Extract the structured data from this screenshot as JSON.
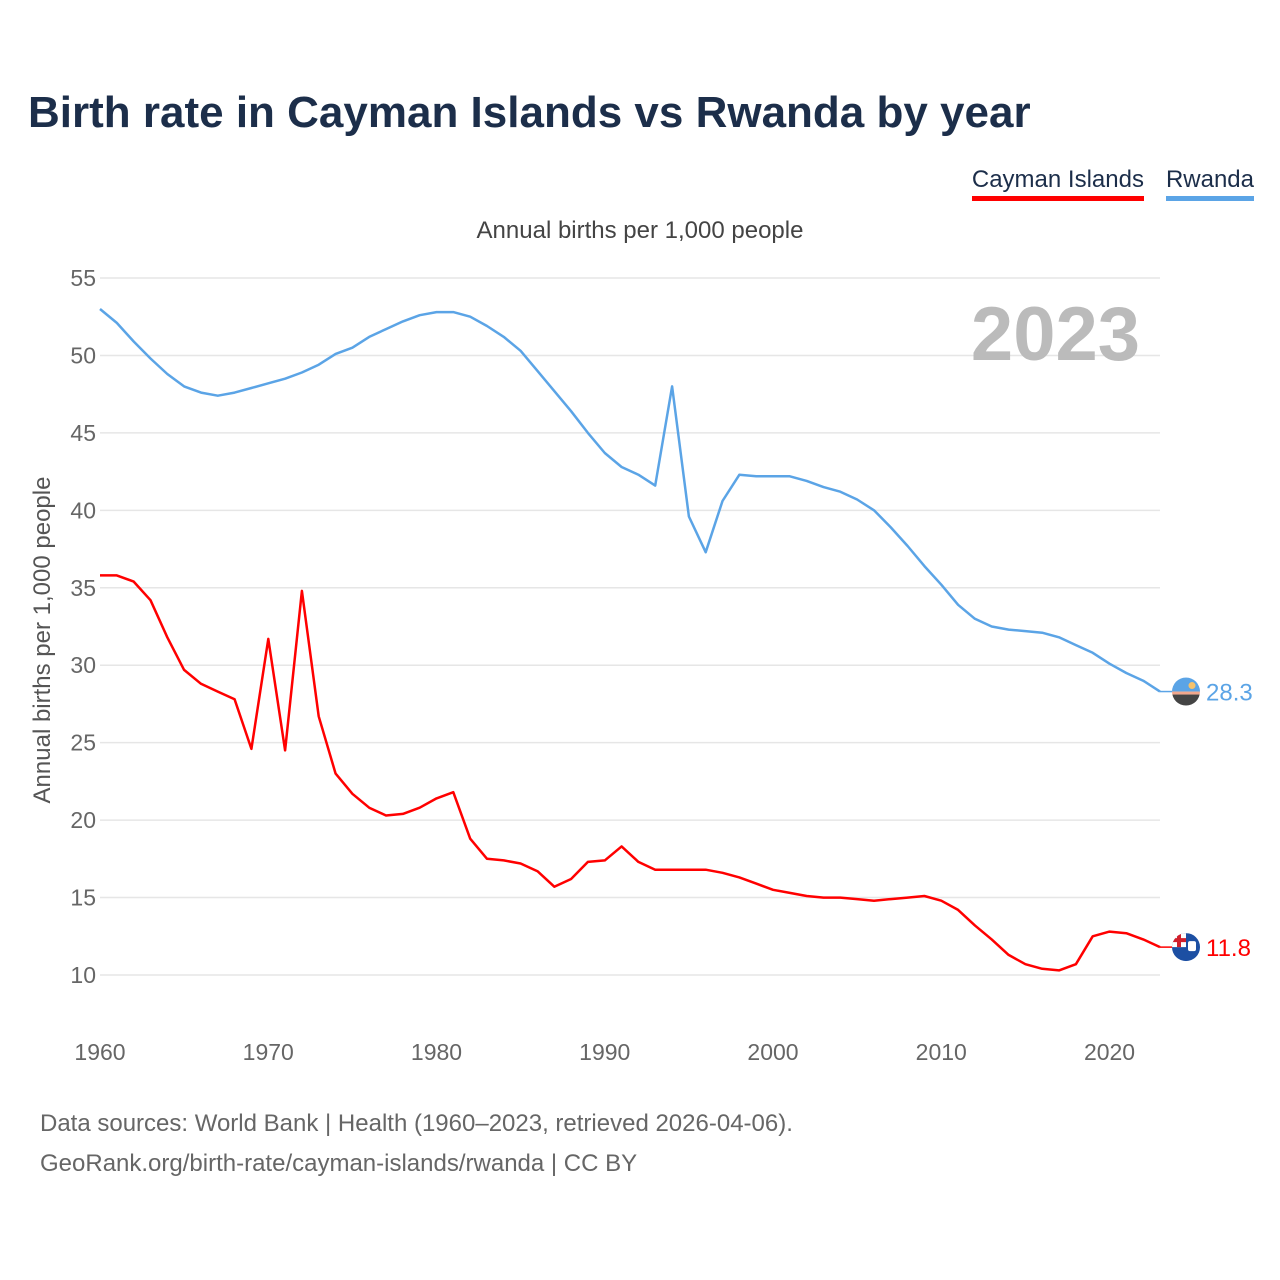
{
  "title": "Birth rate in Cayman Islands vs Rwanda by year",
  "legend": {
    "cayman": "Cayman Islands",
    "rwanda": "Rwanda"
  },
  "subtitle": "Annual births per 1,000 people",
  "year_display": "2023",
  "footer": {
    "line1": "Data sources: World Bank | Health (1960–2023, retrieved 2026-04-06).",
    "line2": "GeoRank.org/birth-rate/cayman-islands/rwanda | CC BY"
  },
  "colors": {
    "cayman": "#ff0000",
    "rwanda": "#5ba4e6",
    "title": "#1c2e4a",
    "grid": "#e6e6e6"
  },
  "icons": {
    "cayman": "cayman-flag-icon",
    "rwanda": "rwanda-flag-icon"
  },
  "chart_data": {
    "type": "line",
    "title": "Birth rate in Cayman Islands vs Rwanda by year",
    "ylabel": "Annual births per 1,000 people",
    "xlabel": "",
    "xlim": [
      1960,
      2023
    ],
    "ylim": [
      10,
      55
    ],
    "x_ticks": [
      1960,
      1970,
      1980,
      1990,
      2000,
      2010,
      2020
    ],
    "y_ticks": [
      10,
      15,
      20,
      25,
      30,
      35,
      40,
      45,
      50,
      55
    ],
    "grid": true,
    "x": [
      1960,
      1961,
      1962,
      1963,
      1964,
      1965,
      1966,
      1967,
      1968,
      1969,
      1970,
      1971,
      1972,
      1973,
      1974,
      1975,
      1976,
      1977,
      1978,
      1979,
      1980,
      1981,
      1982,
      1983,
      1984,
      1985,
      1986,
      1987,
      1988,
      1989,
      1990,
      1991,
      1992,
      1993,
      1994,
      1995,
      1996,
      1997,
      1998,
      1999,
      2000,
      2001,
      2002,
      2003,
      2004,
      2005,
      2006,
      2007,
      2008,
      2009,
      2010,
      2011,
      2012,
      2013,
      2014,
      2015,
      2016,
      2017,
      2018,
      2019,
      2020,
      2021,
      2022,
      2023
    ],
    "series": [
      {
        "name": "Cayman Islands",
        "end_label": "11.8",
        "values": [
          35.8,
          35.8,
          35.4,
          34.2,
          31.8,
          29.7,
          28.8,
          28.3,
          27.8,
          24.6,
          31.7,
          24.5,
          34.8,
          26.7,
          23.0,
          21.7,
          20.8,
          20.3,
          20.4,
          20.8,
          21.4,
          21.8,
          18.8,
          17.5,
          17.4,
          17.2,
          16.7,
          15.7,
          16.2,
          17.3,
          17.4,
          18.3,
          17.3,
          16.8,
          16.8,
          16.8,
          16.8,
          16.6,
          16.3,
          15.9,
          15.5,
          15.3,
          15.1,
          15.0,
          15.0,
          14.9,
          14.8,
          14.9,
          15.0,
          15.1,
          14.8,
          14.2,
          13.2,
          12.3,
          11.3,
          10.7,
          10.4,
          10.3,
          10.7,
          12.5,
          12.8,
          12.7,
          12.3,
          11.8
        ]
      },
      {
        "name": "Rwanda",
        "end_label": "28.3",
        "values": [
          53.0,
          52.1,
          50.9,
          49.8,
          48.8,
          48.0,
          47.6,
          47.4,
          47.6,
          47.9,
          48.2,
          48.5,
          48.9,
          49.4,
          50.1,
          50.5,
          51.2,
          51.7,
          52.2,
          52.6,
          52.8,
          52.8,
          52.5,
          51.9,
          51.2,
          50.3,
          49.0,
          47.7,
          46.4,
          45.0,
          43.7,
          42.8,
          42.3,
          41.6,
          48.0,
          39.6,
          37.3,
          40.6,
          42.3,
          42.2,
          42.2,
          42.2,
          41.9,
          41.5,
          41.2,
          40.7,
          40.0,
          38.9,
          37.7,
          36.4,
          35.2,
          33.9,
          33.0,
          32.5,
          32.3,
          32.2,
          32.1,
          31.8,
          31.3,
          30.8,
          30.1,
          29.5,
          29.0,
          28.3
        ]
      }
    ]
  }
}
